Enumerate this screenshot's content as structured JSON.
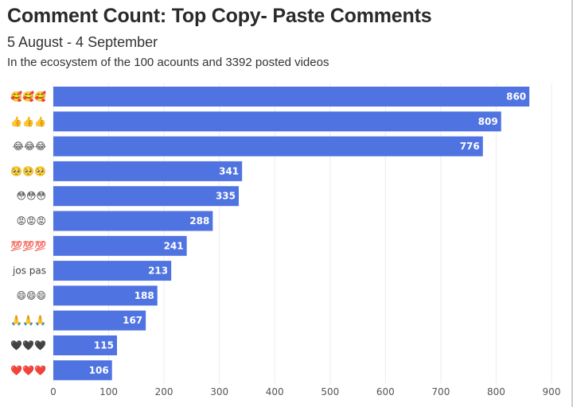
{
  "header": {
    "title": "Comment Count: Top Copy- Paste Comments",
    "subtitle": "5 August - 4 September",
    "note": "In the ecosystem of the 100 acounts and 3392 posted videos"
  },
  "colors": {
    "bar": "#4f73e0",
    "grid": "#ececec"
  },
  "chart_data": {
    "type": "bar",
    "orientation": "horizontal",
    "categories": [
      "🥰🥰🥰",
      "👍👍👍",
      "😂😂😂",
      "🥺🥺🥺",
      "😳😳😳",
      "😡😡😡",
      "💯💯💯",
      "jos pas",
      "😄😄😄",
      "🙏🙏🙏",
      "🖤🖤🖤",
      "❤️❤️❤️"
    ],
    "values": [
      860,
      809,
      776,
      341,
      335,
      288,
      241,
      213,
      188,
      167,
      115,
      106
    ],
    "xlim": [
      0,
      900
    ],
    "xticks": [
      0,
      100,
      200,
      300,
      400,
      500,
      600,
      700,
      800,
      900
    ],
    "grid": true,
    "data_labels": true
  }
}
